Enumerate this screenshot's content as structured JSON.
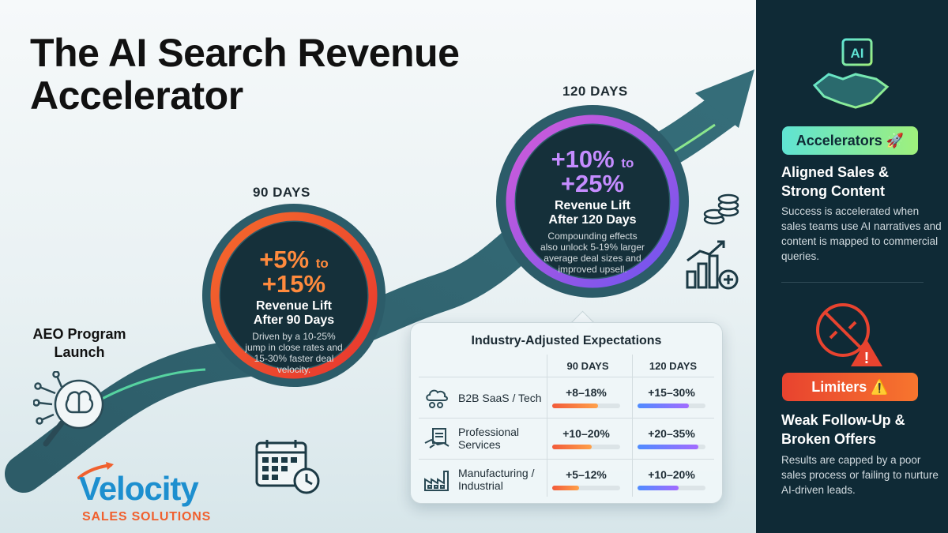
{
  "title": {
    "line1": "The AI Search Revenue",
    "line2": "Accelerator"
  },
  "milestones": {
    "launch": {
      "line1": "AEO Program",
      "line2": "Launch"
    },
    "day90": {
      "label": "90 DAYS",
      "range_from": "+5%",
      "to": "to",
      "range_to": "+15%",
      "lift_line1": "Revenue Lift",
      "lift_line2": "After 90 Days",
      "note_lines": [
        "Driven by a 10-25%",
        "jump in close rates and",
        "15-30% faster deal",
        "velocity."
      ]
    },
    "day120": {
      "label": "120 DAYS",
      "range_from": "+10%",
      "to": "to",
      "range_to": "+25%",
      "lift_line1": "Revenue Lift",
      "lift_line2": "After 120 Days",
      "note_lines": [
        "Compounding effects",
        "also unlock 5-19% larger",
        "average deal sizes and",
        "improved upsell."
      ]
    }
  },
  "industry": {
    "title": "Industry-Adjusted Expectations",
    "col_90": "90 DAYS",
    "col_120": "120 DAYS",
    "rows": [
      {
        "label": "B2B SaaS / Tech",
        "v90": "+8–18%",
        "v120": "+15–30%",
        "fill90": 0.68,
        "fill120": 0.75,
        "icon": "cloud-gears-icon"
      },
      {
        "label_line1": "Professional",
        "label_line2": "Services",
        "v90": "+10–20%",
        "v120": "+20–35%",
        "fill90": 0.58,
        "fill120": 0.9,
        "icon": "handshake-document-icon"
      },
      {
        "label_line1": "Manufacturing /",
        "label_line2": "Industrial",
        "v90": "+5–12%",
        "v120": "+10–20%",
        "fill90": 0.4,
        "fill120": 0.6,
        "icon": "factory-icon"
      }
    ]
  },
  "sidebar": {
    "accelerators": {
      "badge": "Accelerators 🚀",
      "head_line1": "Aligned Sales &",
      "head_line2": "Strong Content",
      "body": "Success is accelerated when sales teams use AI narratives and content is mapped to commercial queries."
    },
    "limiters": {
      "badge": "Limiters ⚠️",
      "head_line1": "Weak Follow-Up &",
      "head_line2": "Broken Offers",
      "body": "Results are capped by a poor sales process or failing to nurture AI-driven leads."
    },
    "ai_chip_label": "AI"
  },
  "logo": {
    "name": "Velocity",
    "tagline": "SALES SOLUTIONS"
  },
  "colors": {
    "orange": "#f7752e",
    "purple": "#a36bff",
    "teal_dark": "#2c5d6a",
    "side_bg": "#0f2a36",
    "accent_green": "#9ff07c",
    "accent_red": "#e8432f"
  }
}
